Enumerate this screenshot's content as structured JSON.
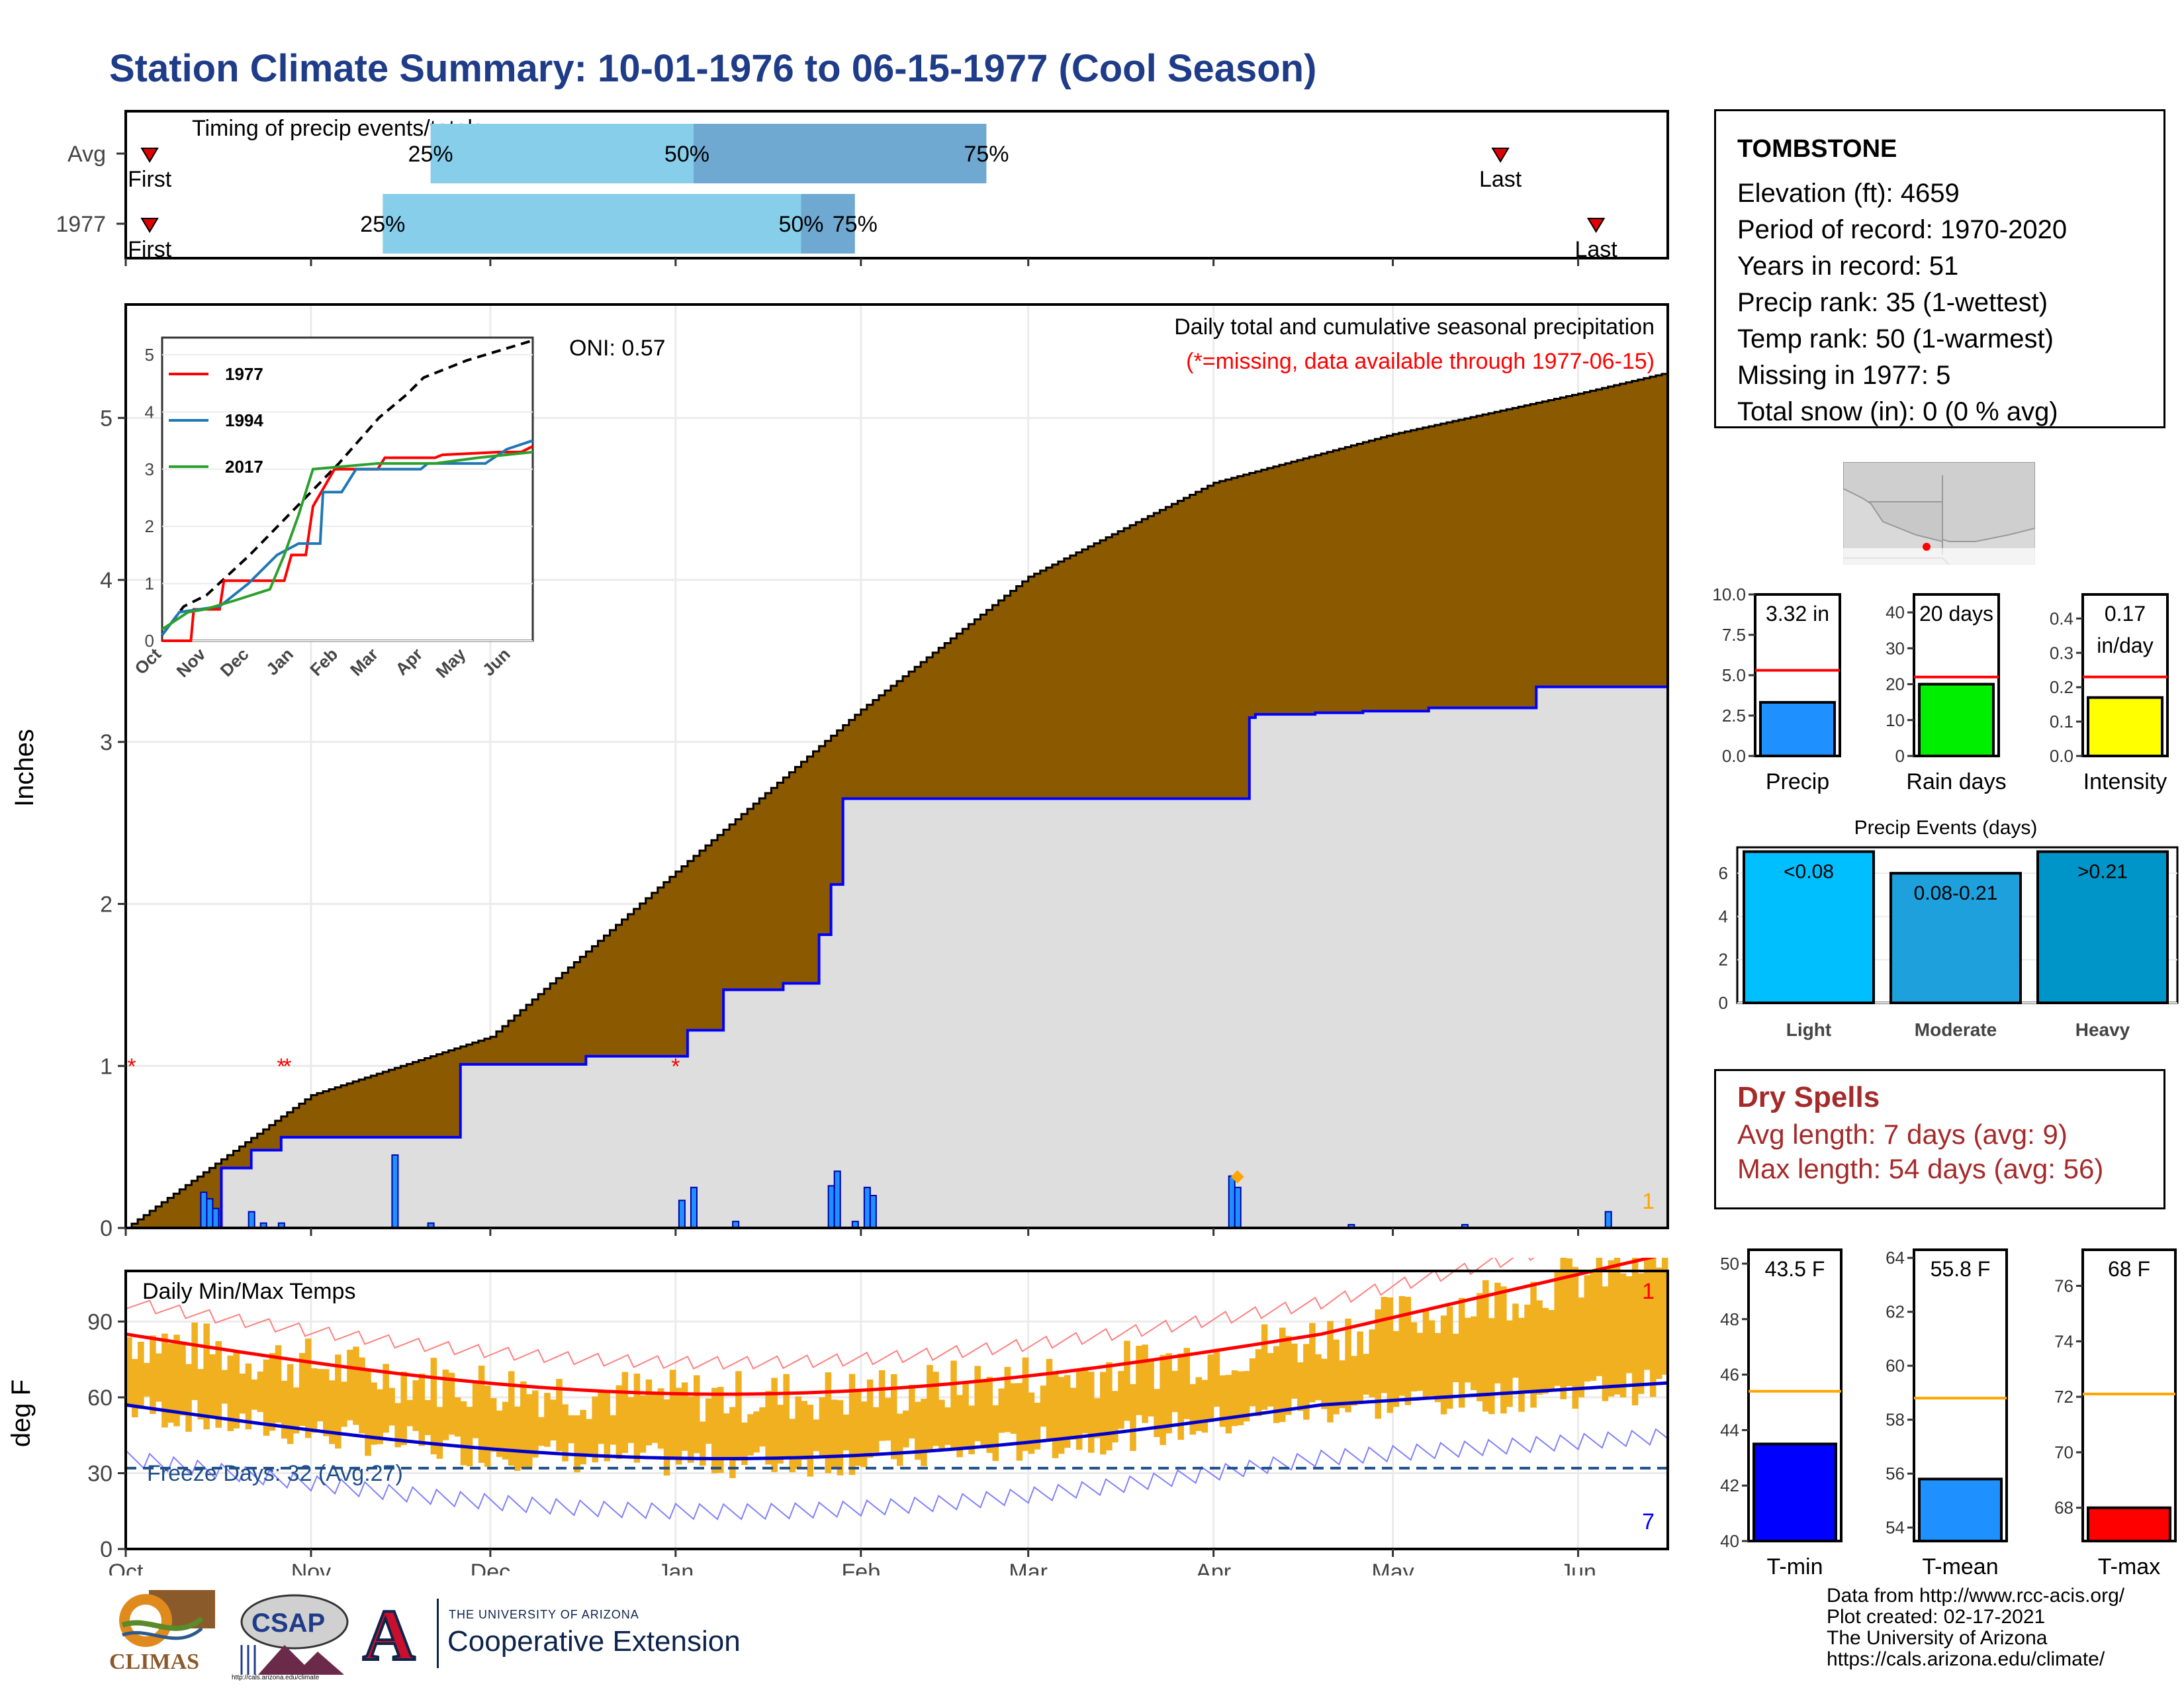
{
  "page": {
    "title": "Station Climate Summary: 10-01-1976 to 06-15-1977 (Cool Season)"
  },
  "station": {
    "name": "TOMBSTONE",
    "lines": [
      "Elevation (ft): 4659",
      "Period of record: 1970-2020",
      "Years in record: 51",
      "Precip rank: 35 (1-wettest)",
      "Temp rank: 50 (1-warmest)",
      "Missing in 1977: 5",
      "Total snow (in): 0 (0 % avg)"
    ]
  },
  "dry_spells": {
    "title": "Dry Spells",
    "avg_length": "Avg length: 7 days (avg: 9)",
    "max_length": "Max length: 54 days (avg: 56)"
  },
  "footer": {
    "lines": [
      "Data from http://www.rcc-acis.org/",
      "Plot created: 02-17-2021",
      "The University of Arizona",
      "https://cals.arizona.edu/climate/"
    ],
    "logos": {
      "climas": "CLIMAS",
      "csap": "CSAP",
      "csap_url": "http://cals.arizona.edu/climate",
      "ua_small": "THE UNIVERSITY OF ARIZONA",
      "ua_big": "Cooperative Extension",
      "ua_letter": "A"
    }
  },
  "colors": {
    "title": "#1f3c88",
    "cum_avg": "#8b5a00",
    "cum_obs_fill": "#dedede",
    "cum_obs_line": "#0000ff",
    "daily_bar": "#1e90ff",
    "light_blue": "#87ceeb",
    "mid_blue": "#6fa8d0",
    "temp_bar": "#f0b020",
    "tmax_avg": "#ff0000",
    "tmin_avg": "#0000cd",
    "dry_spell": "#a52a2a"
  },
  "chart_data": [
    {
      "id": "timing",
      "type": "bar",
      "title": "Timing of precip events/totals",
      "x_range_months": [
        "Oct",
        "Nov",
        "Dec",
        "Jan",
        "Feb",
        "Mar",
        "Apr",
        "May",
        "Jun"
      ],
      "rows": [
        {
          "label": "Avg",
          "first": "Oct 05",
          "p25": "Nov 21",
          "p50": "Jan 04",
          "p75": "Feb 22",
          "last": "May 19",
          "first_label": "First",
          "last_label": "Last",
          "p25_label": "25%",
          "p50_label": "50%",
          "p75_label": "75%"
        },
        {
          "label": "1977",
          "first": "Oct 05",
          "p25": "Nov 13",
          "p50": "Jan 22",
          "p75": "Jan 31",
          "last": "Jun 04",
          "first_label": "First",
          "last_label": "Last",
          "p25_label": "25%",
          "p50_label": "50%",
          "p75_label": "75%"
        }
      ]
    },
    {
      "id": "cumulative-precip",
      "type": "area",
      "title": "Daily total and cumulative seasonal precipitation",
      "subtitle": "(*=missing, data available through 1977-06-15)",
      "oni": "ONI: 0.57",
      "ylabel": "Inches",
      "ylim": [
        0,
        5.7
      ],
      "yticks": [
        0,
        1,
        2,
        3,
        4,
        5
      ],
      "xticks": [
        "Oct",
        "Nov",
        "Dec",
        "Jan",
        "Feb",
        "Mar",
        "Apr",
        "May",
        "Jun"
      ],
      "count_label": "1",
      "avg_cumulative": {
        "day": [
          0,
          31,
          61,
          92,
          123,
          151,
          182,
          212,
          243,
          258
        ],
        "value": [
          0,
          0.82,
          1.18,
          2.2,
          3.2,
          4.02,
          4.6,
          4.9,
          5.15,
          5.28
        ]
      },
      "obs_cumulative": {
        "day": [
          0,
          16,
          21,
          26,
          33,
          56,
          77,
          94,
          100,
          110,
          116,
          118,
          120,
          126,
          188,
          189,
          199,
          207,
          218,
          236,
          258
        ],
        "value": [
          0,
          0.37,
          0.48,
          0.56,
          0.56,
          1.01,
          1.06,
          1.22,
          1.47,
          1.51,
          1.81,
          2.12,
          2.65,
          2.65,
          3.15,
          3.17,
          3.18,
          3.19,
          3.21,
          3.34,
          3.34
        ]
      },
      "daily_bars": {
        "day": [
          13,
          14,
          15,
          21,
          23,
          26,
          45,
          51,
          93,
          95,
          102,
          118,
          119,
          122,
          124,
          125,
          185,
          186,
          205,
          224,
          248
        ],
        "value": [
          0.22,
          0.18,
          0.12,
          0.1,
          0.03,
          0.03,
          0.45,
          0.03,
          0.17,
          0.25,
          0.04,
          0.26,
          0.35,
          0.04,
          0.25,
          0.2,
          0.32,
          0.25,
          0.02,
          0.02,
          0.1
        ]
      },
      "missing_days": [
        1,
        26,
        27,
        92
      ],
      "inset": {
        "series": [
          {
            "name": "1977",
            "color": "#ff0000"
          },
          {
            "name": "1994",
            "color": "#1f77b4"
          },
          {
            "name": "2017",
            "color": "#2ca02c"
          }
        ],
        "yticks": [
          0,
          1,
          2,
          3,
          4,
          5
        ],
        "xticks": [
          "Oct",
          "Nov",
          "Dec",
          "Jan",
          "Feb",
          "Mar",
          "Apr",
          "May",
          "Jun"
        ]
      }
    },
    {
      "id": "temps",
      "type": "bar",
      "title": "Daily Min/Max Temps",
      "ylabel": "deg F",
      "ylim": [
        0,
        110
      ],
      "yticks": [
        0,
        30,
        60,
        90
      ],
      "xticks": [
        "Oct",
        "Nov",
        "Dec",
        "Jan",
        "Feb",
        "Mar",
        "Apr",
        "May",
        "Jun"
      ],
      "freeze_label": "Freeze Days: 32 (Avg:27)",
      "freeze_line": 32,
      "top_count": "1",
      "bottom_count": "7"
    },
    {
      "id": "precip-summary",
      "type": "bar",
      "panels": [
        {
          "category": "Precip",
          "value": 3.32,
          "label": "3.32 in",
          "avg": 5.3,
          "ylim": [
            0,
            10
          ],
          "yticks": [
            "0.0",
            "2.5",
            "5.0",
            "7.5",
            "10.0"
          ],
          "color": "#1e90ff"
        },
        {
          "category": "Rain days",
          "value": 20,
          "label": "20 days",
          "avg": 22,
          "ylim": [
            0,
            45
          ],
          "yticks": [
            "0",
            "10",
            "20",
            "30",
            "40"
          ],
          "color": "#00ee00"
        },
        {
          "category": "Intensity",
          "value": 0.17,
          "label": "0.17",
          "label2": "in/day",
          "avg": 0.23,
          "ylim": [
            0,
            0.47
          ],
          "yticks": [
            "0.0",
            "0.1",
            "0.2",
            "0.3",
            "0.4"
          ],
          "color": "#ffff00"
        }
      ]
    },
    {
      "id": "precip-events",
      "type": "bar",
      "title": "Precip Events (days)",
      "categories": [
        "Light",
        "Moderate",
        "Heavy"
      ],
      "values": [
        7,
        6,
        7
      ],
      "labels": [
        "<0.08",
        "0.08-0.21",
        ">0.21"
      ],
      "yticks": [
        0,
        2,
        4,
        6
      ],
      "ylim": [
        0,
        7.2
      ]
    },
    {
      "id": "temp-summary",
      "type": "bar",
      "panels": [
        {
          "category": "T-min",
          "value": 43.5,
          "label": "43.5 F",
          "avg": 45.4,
          "ylim": [
            40,
            50.5
          ],
          "yticks": [
            40,
            42,
            44,
            46,
            48,
            50
          ],
          "color": "#0000ff"
        },
        {
          "category": "T-mean",
          "value": 55.8,
          "label": "55.8 F",
          "avg": 58.8,
          "ylim": [
            53.5,
            64.3
          ],
          "yticks": [
            54,
            56,
            58,
            60,
            62,
            64
          ],
          "color": "#1e90ff"
        },
        {
          "category": "T-max",
          "value": 68,
          "label": "68 F",
          "avg": 72.1,
          "ylim": [
            66.8,
            77.3
          ],
          "yticks": [
            68,
            70,
            72,
            74,
            76
          ],
          "color": "#ff0000"
        }
      ]
    }
  ]
}
